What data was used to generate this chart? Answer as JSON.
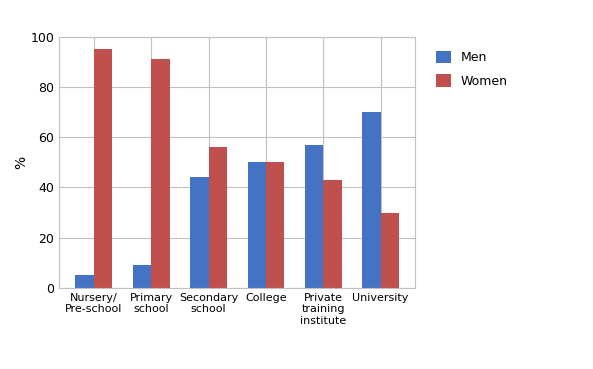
{
  "categories": [
    "Nursery/\nPre-school",
    "Primary\nschool",
    "Secondary\nschool",
    "College",
    "Private\ntraining\ninstitute",
    "University"
  ],
  "men_values": [
    5,
    9,
    44,
    50,
    57,
    70
  ],
  "women_values": [
    95,
    91,
    56,
    50,
    43,
    30
  ],
  "men_color": "#4472C4",
  "women_color": "#C0504D",
  "ylabel": "%",
  "ylim": [
    0,
    100
  ],
  "yticks": [
    0,
    20,
    40,
    60,
    80,
    100
  ],
  "legend_men": "Men",
  "legend_women": "Women",
  "bar_width": 0.32,
  "figsize": [
    5.93,
    3.69
  ],
  "dpi": 100,
  "bg_color": "#ffffff",
  "plot_bg_color": "#ffffff"
}
